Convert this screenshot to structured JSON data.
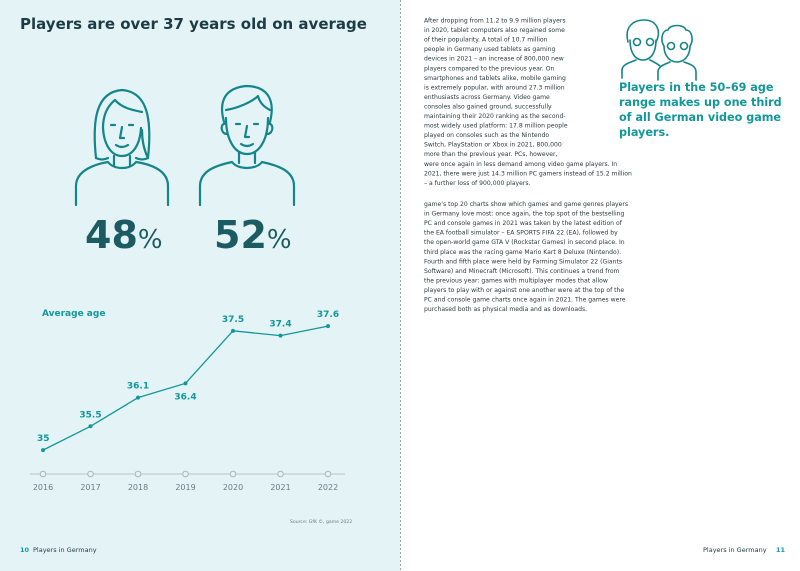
{
  "left_page": {
    "title": "Players are over 37 years old on average",
    "shares": [
      {
        "number": "48",
        "sign": "%"
      },
      {
        "number": "52",
        "sign": "%"
      }
    ],
    "source": "Source: GfK ©, game 2022",
    "page_number": "10",
    "running_head": "Players in Germany"
  },
  "chart_data": {
    "type": "line",
    "title": "Average age",
    "categories": [
      "2016",
      "2017",
      "2018",
      "2019",
      "2020",
      "2021",
      "2022"
    ],
    "values": [
      35,
      35.5,
      36.1,
      36.4,
      37.5,
      37.4,
      37.6
    ],
    "color": "#12979a",
    "ylim": [
      34.5,
      38
    ]
  },
  "right_page": {
    "paragraphs": [
      [
        "After dropping from 11.2 to 9.9 million players",
        "in 2020, tablet computers also regained some",
        "of their popularity. A total of 10.7 million",
        "people in Germany used tablets as gaming",
        "devices in 2021 – an increase of 800,000 new",
        "players compared to the previous year. On",
        "smartphones and tablets alike, mobile gaming",
        "is extremely popular, with around 27.3 million",
        "enthusiasts across Germany. Video game",
        "consoles also gained ground, successfully",
        "maintaining their 2020 ranking as the second-",
        "most widely used platform: 17.8 million people",
        "played on consoles such as the Nintendo",
        "Switch, PlayStation or Xbox in 2021, 800,000",
        "more than the previous year. PCs, however,",
        "were once again in less demand among video game players. In",
        "2021, there were just 14.3 million PC gamers instead of 15.2 million",
        "– a further loss of 900,000 players."
      ],
      [
        "game's top 20 charts show which games and game genres players",
        "in Germany love most: once again, the top spot of the bestselling",
        "PC and console games in 2021 was taken by the latest edition of",
        "the EA football simulator – EA SPORTS FIFA 22 (EA), followed by",
        "the open-world game GTA V (Rockstar Games) in second place. In",
        "third place was the racing game Mario Kart 8 Deluxe (Nintendo).",
        "Fourth and fifth place were held by Farming Simulator 22 (Giants",
        "Software) and Minecraft (Microsoft). This continues a trend from",
        "the previous year: games with multiplayer modes that allow",
        "players to play with or against one another were at the top of the",
        "PC and console game charts once again in 2021. The games were",
        "purchased both as physical media and as downloads."
      ]
    ],
    "callout": [
      "Players in the 50–69 age",
      "range makes up one third",
      "of all German video game",
      "players."
    ],
    "page_number": "11",
    "running_head": "Players in Germany"
  }
}
